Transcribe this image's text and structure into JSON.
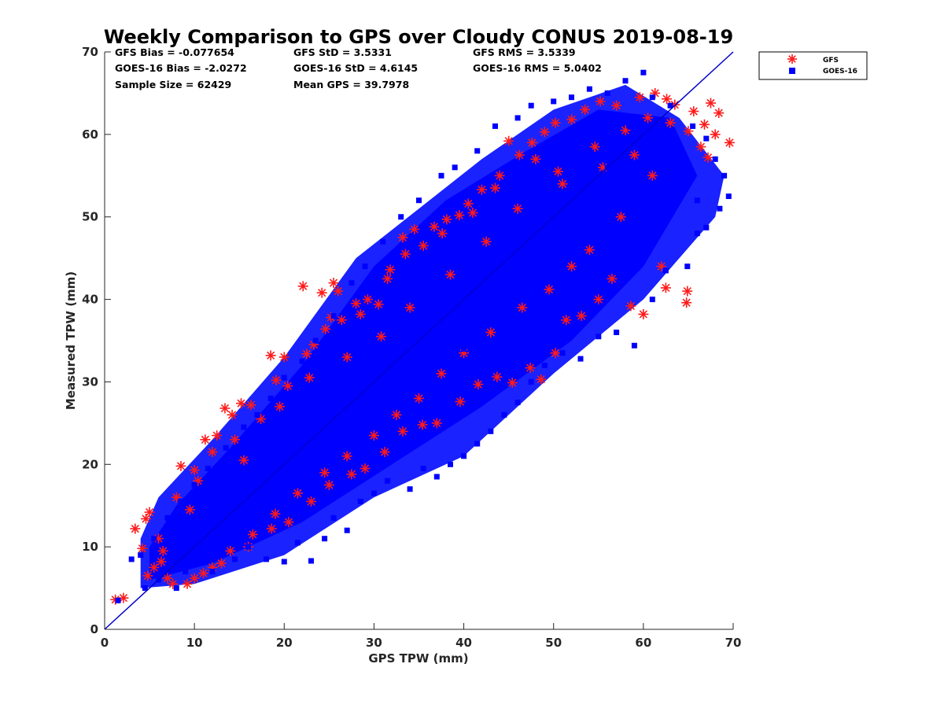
{
  "chart_data": {
    "type": "scatter",
    "title": "Weekly Comparison to GPS over Cloudy CONUS 2019-08-19",
    "xlabel": "GPS TPW (mm)",
    "ylabel": "Measured TPW (mm)",
    "xlim": [
      0,
      70
    ],
    "ylim": [
      0,
      70
    ],
    "xticks": [
      "0",
      "10",
      "20",
      "30",
      "40",
      "50",
      "60",
      "70"
    ],
    "yticks": [
      "0",
      "10",
      "20",
      "30",
      "40",
      "50",
      "60",
      "70"
    ],
    "grid": false,
    "legend_position": "outside-top-right",
    "reference_line": {
      "name": "1:1",
      "x": [
        0,
        70
      ],
      "y": [
        0,
        70
      ],
      "color": "#0000cc"
    },
    "stats": [
      [
        "GFS Bias = -0.077654",
        "GFS StD = 3.5331",
        "GFS RMS = 3.5339"
      ],
      [
        "GOES-16 Bias = -2.0272",
        "GOES-16 StD = 4.6145",
        "GOES-16 RMS = 5.0402"
      ],
      [
        "Sample Size = 62429",
        "Mean GPS = 39.7978"
      ]
    ],
    "series": [
      {
        "name": "GFS",
        "marker": "asterisk",
        "color": "#ff1a1a",
        "points": [
          [
            1.2,
            3.6
          ],
          [
            2.1,
            3.8
          ],
          [
            3.4,
            12.2
          ],
          [
            4.2,
            9.8
          ],
          [
            4.6,
            13.4
          ],
          [
            5.0,
            14.2
          ],
          [
            4.8,
            6.5
          ],
          [
            6.3,
            8.2
          ],
          [
            7.6,
            5.5
          ],
          [
            8.5,
            19.8
          ],
          [
            10.0,
            19.3
          ],
          [
            11.2,
            23.0
          ],
          [
            12.5,
            23.5
          ],
          [
            13.4,
            26.8
          ],
          [
            14.2,
            26.0
          ],
          [
            15.2,
            27.4
          ],
          [
            16.3,
            27.2
          ],
          [
            18.5,
            33.2
          ],
          [
            19.1,
            30.2
          ],
          [
            20.4,
            29.5
          ],
          [
            22.1,
            41.6
          ],
          [
            24.2,
            40.8
          ],
          [
            25.5,
            42.0
          ],
          [
            26.0,
            41.0
          ],
          [
            25.2,
            37.8
          ],
          [
            22.5,
            33.4
          ],
          [
            28.0,
            39.5
          ],
          [
            29.3,
            40.0
          ],
          [
            30.5,
            39.4
          ],
          [
            31.8,
            43.6
          ],
          [
            33.2,
            47.5
          ],
          [
            34.5,
            48.5
          ],
          [
            36.7,
            48.8
          ],
          [
            38.1,
            49.7
          ],
          [
            39.5,
            50.2
          ],
          [
            40.5,
            51.6
          ],
          [
            42.0,
            53.3
          ],
          [
            43.5,
            53.5
          ],
          [
            45.0,
            59.2
          ],
          [
            46.2,
            57.5
          ],
          [
            47.6,
            59.0
          ],
          [
            49.0,
            60.3
          ],
          [
            50.2,
            61.4
          ],
          [
            52.0,
            61.8
          ],
          [
            53.5,
            63.0
          ],
          [
            55.2,
            64.0
          ],
          [
            57.0,
            63.5
          ],
          [
            59.6,
            64.5
          ],
          [
            61.3,
            65.0
          ],
          [
            62.6,
            64.3
          ],
          [
            63.5,
            63.6
          ],
          [
            65.6,
            62.8
          ],
          [
            66.8,
            61.2
          ],
          [
            67.5,
            63.8
          ],
          [
            68.4,
            62.6
          ],
          [
            69.6,
            59.0
          ],
          [
            68.0,
            60.0
          ],
          [
            66.4,
            58.5
          ],
          [
            67.2,
            57.2
          ],
          [
            64.8,
            39.6
          ],
          [
            64.9,
            41.0
          ],
          [
            62.5,
            41.4
          ],
          [
            62.0,
            44.0
          ],
          [
            60.0,
            38.2
          ],
          [
            58.6,
            39.2
          ],
          [
            56.5,
            42.5
          ],
          [
            55.0,
            40.0
          ],
          [
            53.1,
            38.0
          ],
          [
            51.4,
            37.5
          ],
          [
            50.2,
            33.5
          ],
          [
            48.6,
            30.3
          ],
          [
            47.4,
            31.7
          ],
          [
            45.4,
            29.9
          ],
          [
            43.7,
            30.6
          ],
          [
            41.6,
            29.7
          ],
          [
            39.6,
            27.6
          ],
          [
            37.0,
            25.0
          ],
          [
            35.4,
            24.8
          ],
          [
            33.2,
            24.0
          ],
          [
            31.2,
            21.5
          ],
          [
            29.0,
            19.5
          ],
          [
            27.5,
            18.8
          ],
          [
            25.0,
            17.5
          ],
          [
            23.0,
            15.5
          ],
          [
            20.5,
            13.0
          ],
          [
            18.6,
            12.2
          ],
          [
            16.0,
            10.0
          ],
          [
            13.0,
            8.0
          ],
          [
            11.0,
            6.8
          ],
          [
            9.2,
            5.5
          ],
          [
            6.5,
            9.5
          ],
          [
            8.0,
            16.0
          ],
          [
            10.4,
            18.0
          ],
          [
            12.0,
            21.5
          ],
          [
            14.5,
            23.0
          ],
          [
            17.4,
            25.5
          ],
          [
            20.0,
            33.0
          ],
          [
            23.3,
            34.5
          ],
          [
            24.6,
            36.4
          ],
          [
            26.4,
            37.5
          ],
          [
            28.5,
            38.2
          ],
          [
            31.5,
            42.5
          ],
          [
            33.5,
            45.5
          ],
          [
            35.5,
            46.5
          ],
          [
            37.6,
            48.0
          ],
          [
            41.0,
            50.5
          ],
          [
            44.0,
            55.0
          ],
          [
            48.0,
            57.0
          ],
          [
            50.5,
            55.5
          ],
          [
            54.6,
            58.5
          ],
          [
            58.0,
            60.5
          ],
          [
            60.5,
            62.0
          ],
          [
            63.0,
            61.4
          ],
          [
            65.0,
            60.4
          ],
          [
            61.0,
            55.0
          ],
          [
            57.5,
            50.0
          ],
          [
            54.0,
            46.0
          ],
          [
            52.0,
            44.0
          ],
          [
            49.5,
            41.2
          ],
          [
            46.5,
            39.0
          ],
          [
            43.0,
            36.0
          ],
          [
            40.0,
            33.5
          ],
          [
            37.5,
            31.0
          ],
          [
            35.0,
            28.0
          ],
          [
            32.5,
            26.0
          ],
          [
            30.0,
            23.5
          ],
          [
            27.0,
            21.0
          ],
          [
            24.5,
            19.0
          ],
          [
            21.5,
            16.5
          ],
          [
            19.0,
            14.0
          ],
          [
            16.5,
            11.5
          ],
          [
            14.0,
            9.5
          ],
          [
            12.0,
            7.5
          ],
          [
            10.0,
            6.2
          ],
          [
            7.0,
            6.2
          ],
          [
            5.5,
            7.5
          ],
          [
            6.0,
            11.0
          ],
          [
            9.5,
            14.5
          ],
          [
            15.5,
            20.5
          ],
          [
            19.5,
            27.0
          ],
          [
            22.8,
            30.5
          ],
          [
            27.0,
            33.0
          ],
          [
            30.8,
            35.5
          ],
          [
            34.0,
            39.0
          ],
          [
            38.5,
            43.0
          ],
          [
            42.5,
            47.0
          ],
          [
            46.0,
            51.0
          ],
          [
            51.0,
            54.0
          ],
          [
            55.5,
            56.0
          ],
          [
            59.0,
            57.5
          ]
        ]
      },
      {
        "name": "GOES-16",
        "marker": "square",
        "color": "#0000ff",
        "points": [
          [
            1.5,
            3.5
          ],
          [
            3.0,
            8.5
          ],
          [
            4.5,
            5.0
          ],
          [
            6.0,
            6.0
          ],
          [
            8.0,
            5.0
          ],
          [
            9.0,
            7.0
          ],
          [
            10.5,
            8.0
          ],
          [
            12.0,
            7.0
          ],
          [
            14.5,
            8.5
          ],
          [
            16.0,
            10.0
          ],
          [
            18.0,
            8.5
          ],
          [
            20.0,
            8.2
          ],
          [
            21.5,
            10.5
          ],
          [
            23.0,
            8.3
          ],
          [
            24.5,
            11.0
          ],
          [
            25.5,
            13.5
          ],
          [
            27.0,
            12.0
          ],
          [
            28.5,
            15.5
          ],
          [
            30.0,
            16.5
          ],
          [
            31.5,
            18.0
          ],
          [
            34.0,
            17.0
          ],
          [
            35.5,
            19.5
          ],
          [
            37.0,
            18.5
          ],
          [
            38.5,
            20.0
          ],
          [
            40.0,
            21.0
          ],
          [
            41.5,
            22.5
          ],
          [
            43.0,
            24.0
          ],
          [
            44.5,
            26.0
          ],
          [
            46.0,
            27.5
          ],
          [
            47.5,
            30.0
          ],
          [
            49.0,
            32.0
          ],
          [
            51.0,
            33.5
          ],
          [
            53.0,
            32.8
          ],
          [
            55.0,
            35.5
          ],
          [
            57.0,
            36.0
          ],
          [
            59.0,
            34.4
          ],
          [
            61.0,
            40.0
          ],
          [
            62.5,
            43.5
          ],
          [
            64.9,
            44.0
          ],
          [
            66.0,
            48.0
          ],
          [
            67.0,
            48.7
          ],
          [
            68.5,
            51.0
          ],
          [
            69.5,
            52.5
          ],
          [
            69.0,
            55.0
          ],
          [
            68.0,
            57.0
          ],
          [
            67.0,
            59.5
          ],
          [
            65.5,
            61.0
          ],
          [
            63.0,
            63.5
          ],
          [
            61.0,
            64.5
          ],
          [
            60.0,
            67.5
          ],
          [
            58.0,
            66.5
          ],
          [
            56.0,
            65.0
          ],
          [
            54.0,
            65.5
          ],
          [
            52.0,
            64.5
          ],
          [
            50.0,
            64.0
          ],
          [
            47.5,
            63.5
          ],
          [
            46.0,
            62.0
          ],
          [
            43.5,
            61.0
          ],
          [
            41.5,
            58.0
          ],
          [
            39.0,
            56.0
          ],
          [
            37.5,
            55.0
          ],
          [
            35.0,
            52.0
          ],
          [
            33.0,
            50.0
          ],
          [
            31.0,
            47.0
          ],
          [
            29.0,
            44.0
          ],
          [
            27.5,
            42.0
          ],
          [
            25.5,
            38.0
          ],
          [
            23.5,
            35.0
          ],
          [
            22.0,
            32.5
          ],
          [
            20.0,
            30.5
          ],
          [
            18.5,
            28.0
          ],
          [
            17.0,
            26.0
          ],
          [
            15.5,
            24.5
          ],
          [
            13.5,
            22.0
          ],
          [
            11.5,
            19.5
          ],
          [
            10.0,
            17.5
          ],
          [
            8.5,
            15.5
          ],
          [
            7.0,
            13.5
          ],
          [
            5.5,
            11.0
          ],
          [
            4.0,
            9.0
          ],
          [
            30.0,
            30.0
          ],
          [
            32.0,
            32.0
          ],
          [
            34.0,
            34.0
          ],
          [
            36.0,
            36.0
          ],
          [
            38.0,
            38.0
          ],
          [
            40.0,
            40.0
          ],
          [
            42.0,
            42.0
          ],
          [
            44.0,
            44.0
          ],
          [
            46.0,
            46.0
          ],
          [
            48.0,
            48.0
          ],
          [
            50.0,
            50.0
          ],
          [
            52.0,
            52.0
          ],
          [
            54.0,
            54.0
          ],
          [
            56.0,
            56.0
          ],
          [
            58.0,
            58.0
          ],
          [
            60.0,
            60.0
          ],
          [
            28.0,
            28.0
          ],
          [
            26.0,
            26.0
          ],
          [
            24.0,
            24.0
          ],
          [
            22.0,
            22.0
          ],
          [
            20.0,
            20.0
          ],
          [
            18.0,
            18.0
          ],
          [
            16.0,
            16.0
          ],
          [
            14.0,
            14.0
          ],
          [
            12.0,
            12.0
          ],
          [
            10.0,
            10.0
          ],
          [
            8.0,
            8.0
          ],
          [
            6.0,
            6.5
          ],
          [
            35.0,
            30.0
          ],
          [
            40.0,
            34.0
          ],
          [
            45.0,
            40.0
          ],
          [
            50.0,
            44.0
          ],
          [
            55.0,
            48.0
          ],
          [
            60.0,
            52.0
          ],
          [
            25.0,
            20.0
          ],
          [
            20.0,
            15.0
          ],
          [
            15.0,
            11.0
          ],
          [
            30.0,
            25.0
          ],
          [
            36.0,
            40.0
          ],
          [
            42.0,
            46.0
          ],
          [
            48.0,
            53.0
          ],
          [
            54.0,
            58.0
          ],
          [
            58.5,
            61.0
          ],
          [
            24.0,
            29.0
          ],
          [
            18.0,
            22.0
          ],
          [
            12.0,
            15.0
          ],
          [
            62.0,
            55.0
          ],
          [
            64.0,
            58.0
          ],
          [
            66.0,
            52.0
          ],
          [
            57.5,
            45.0
          ]
        ]
      }
    ]
  },
  "legend": [
    {
      "label": "GFS",
      "marker": "asterisk",
      "color": "#ff1a1a"
    },
    {
      "label": "GOES-16",
      "marker": "square",
      "color": "#0000ff"
    }
  ]
}
